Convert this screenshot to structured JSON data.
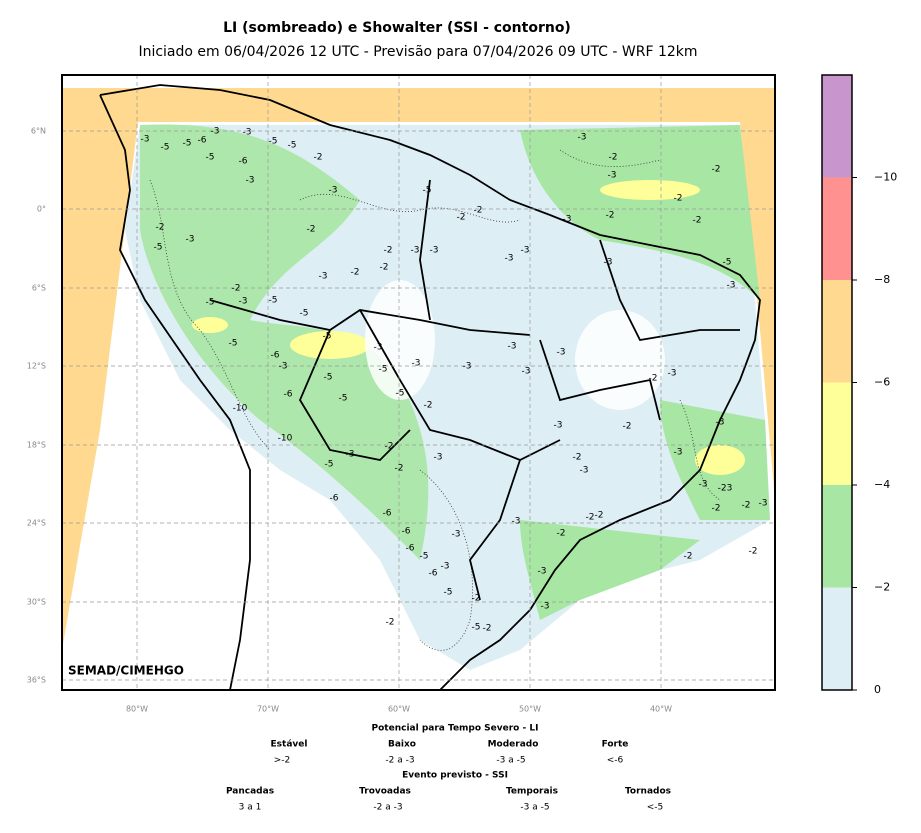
{
  "header": {
    "title": "LI (sombreado) e Showalter (SSI - contorno)",
    "subtitle": "Iniciado em 06/04/2026 12 UTC - Previsão para 07/04/2026 09 UTC - WRF 12km"
  },
  "map": {
    "credit": "SEMAD/CIMEHGO",
    "lat_ticks": [
      "6°N",
      "0°",
      "6°S",
      "12°S",
      "18°S",
      "24°S",
      "30°S",
      "36°S"
    ],
    "lon_ticks": [
      "80°W",
      "70°W",
      "60°W",
      "50°W",
      "40°W"
    ],
    "contour_labels": [
      "-3",
      "-5",
      "-5",
      "-6",
      "-3",
      "-3",
      "-5",
      "-6",
      "-3",
      "-5",
      "-5",
      "-2",
      "-3",
      "-5",
      "-3",
      "-2",
      "-3",
      "-2",
      "-2",
      "-2",
      "-2",
      "-3",
      "-2",
      "-2",
      "-2",
      "-2",
      "-3",
      "-3",
      "-3",
      "-2",
      "-2",
      "-3",
      "-3",
      "-3",
      "-5",
      "-3",
      "-2",
      "-5",
      "-3",
      "-2",
      "-3",
      "-5",
      "-5",
      "-5",
      "-5",
      "-3",
      "-3",
      "-3",
      "-5",
      "-6",
      "-3",
      "-5",
      "-5",
      "-3",
      "-3",
      "-3",
      "-2",
      "-3",
      "-10",
      "-6",
      "-5",
      "-5",
      "-2",
      "-3",
      "-2",
      "-3",
      "-10",
      "-3",
      "-2",
      "-3",
      "-5",
      "-2",
      "-2",
      "-3",
      "-3",
      "-3",
      "-23",
      "-2",
      "-2",
      "-3",
      "-6",
      "-6",
      "-6",
      "-6",
      "-5",
      "-3",
      "-3",
      "-2",
      "-2",
      "-2",
      "-2",
      "-2",
      "-6",
      "-3",
      "-3",
      "-5",
      "-2",
      "-3",
      "-2",
      "-5",
      "-2"
    ]
  },
  "colorbar": {
    "range": [
      0,
      -12
    ],
    "colors": [
      "#ddeef5",
      "#a8e6a3",
      "#ffff99",
      "#ffd98f",
      "#ff9191",
      "#c896cc"
    ],
    "ticks": [
      0,
      {
        "value": -2,
        "label": "−2"
      },
      {
        "value": -4,
        "label": "−4"
      },
      {
        "value": -6,
        "label": "−6"
      },
      {
        "value": -8,
        "label": "−8"
      },
      {
        "value": -10,
        "label": "−10"
      }
    ]
  },
  "legend": {
    "li_title": "Potencial para Tempo Severo - LI",
    "li": [
      {
        "name": "Estável",
        "range": ">-2"
      },
      {
        "name": "Baixo",
        "range": "-2 a -3"
      },
      {
        "name": "Moderado",
        "range": "-3 a -5"
      },
      {
        "name": "Forte",
        "range": "<-6"
      }
    ],
    "ssi_title": "Evento previsto - SSI",
    "ssi": [
      {
        "name": "Pancadas",
        "range": "3 a 1"
      },
      {
        "name": "Trovoadas",
        "range": "-2 a -3"
      },
      {
        "name": "Temporais",
        "range": "-3 a -5"
      },
      {
        "name": "Tornados",
        "range": "<-5"
      }
    ]
  }
}
